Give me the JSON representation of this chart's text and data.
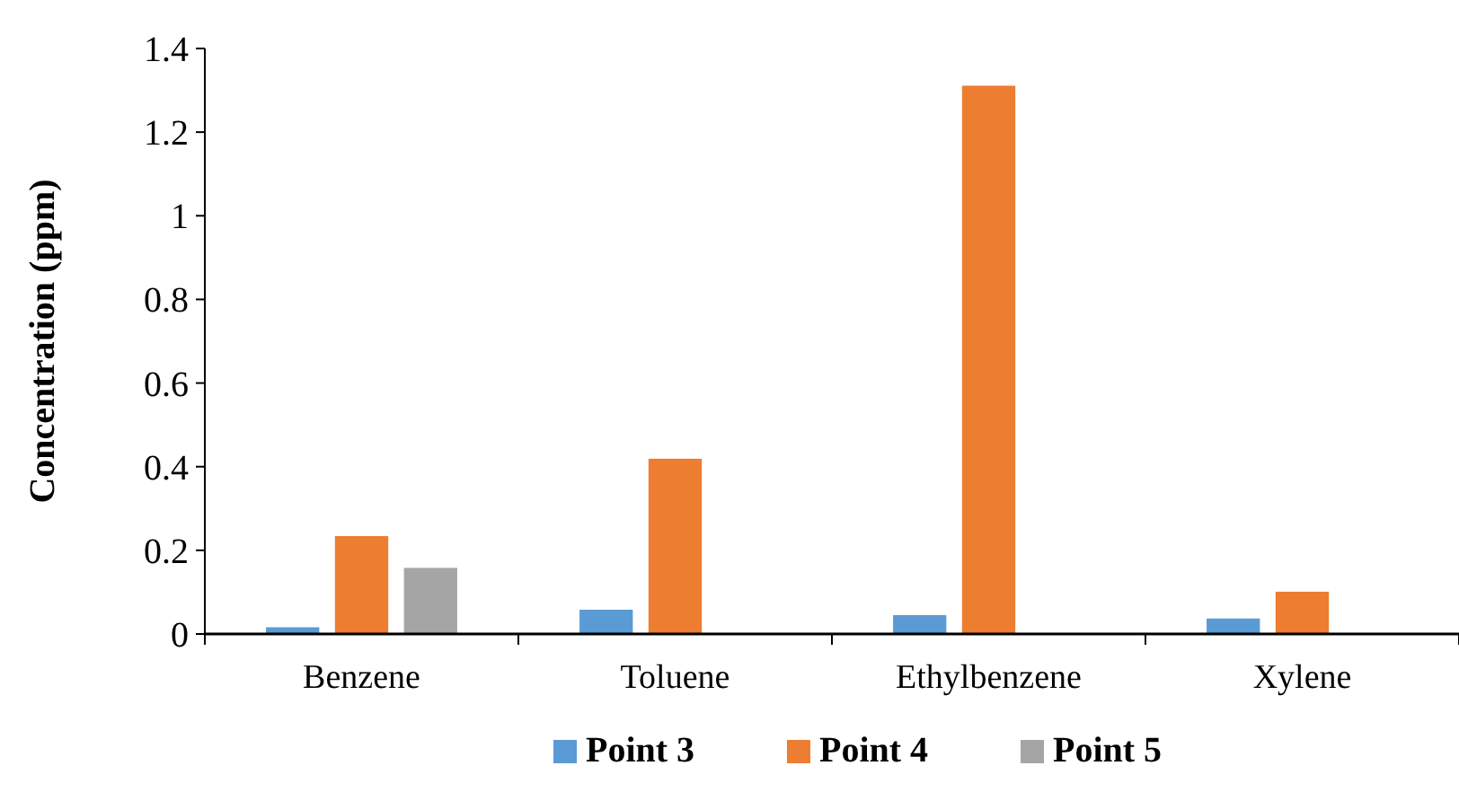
{
  "chart_data": {
    "type": "bar",
    "ylabel": "Concentration (ppm)",
    "categories": [
      "Benzene",
      "Toluene",
      "Ethylbenzene",
      "Xylene"
    ],
    "series": [
      {
        "name": "Point 3",
        "color": "#5b9bd5",
        "values": [
          0.016,
          0.058,
          0.045,
          0.037
        ]
      },
      {
        "name": "Point 4",
        "color": "#ed7d31",
        "values": [
          0.234,
          0.419,
          1.311,
          0.101
        ]
      },
      {
        "name": "Point 5",
        "color": "#a5a5a5",
        "values": [
          0.158,
          null,
          null,
          null
        ]
      }
    ],
    "ylim": [
      0,
      1.4
    ],
    "yticks": [
      0,
      {
        "value": 0.2,
        "label": "0.2"
      },
      {
        "value": 0.4,
        "label": "0.4"
      },
      {
        "value": 0.6,
        "label": "0.6"
      },
      {
        "value": 0.8,
        "label": "0.8"
      },
      1,
      {
        "value": 1.2,
        "label": "1.2"
      },
      {
        "value": 1.4,
        "label": "1.4"
      }
    ],
    "grid": false,
    "legend": "bottom"
  }
}
